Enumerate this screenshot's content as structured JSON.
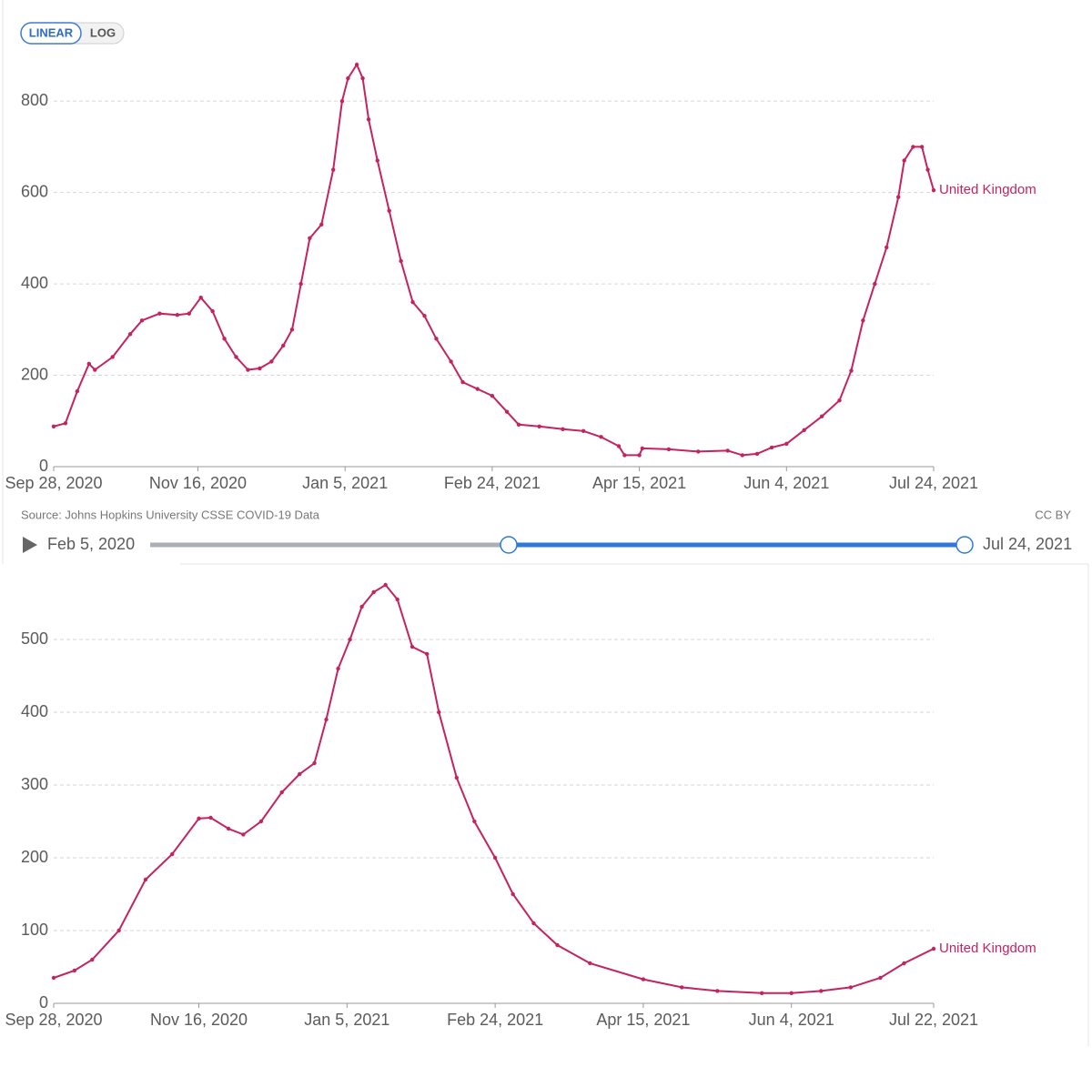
{
  "ui": {
    "scale_buttons": [
      "LINEAR",
      "LOG"
    ],
    "source": "Source: Johns Hopkins University CSSE COVID-19 Data",
    "license": "CC BY",
    "slider": {
      "start": "Feb 5, 2020",
      "end": "Jul 24, 2021"
    }
  },
  "chart_data": [
    {
      "type": "line",
      "x": [
        "2020-09-28",
        "2020-10-02",
        "2020-10-06",
        "2020-10-10",
        "2020-10-12",
        "2020-10-18",
        "2020-10-24",
        "2020-10-28",
        "2020-11-03",
        "2020-11-09",
        "2020-11-13",
        "2020-11-17",
        "2020-11-21",
        "2020-11-25",
        "2020-11-29",
        "2020-12-03",
        "2020-12-07",
        "2020-12-11",
        "2020-12-15",
        "2020-12-18",
        "2020-12-21",
        "2020-12-24",
        "2020-12-28",
        "2021-01-01",
        "2021-01-04",
        "2021-01-06",
        "2021-01-09",
        "2021-01-11",
        "2021-01-13",
        "2021-01-16",
        "2021-01-20",
        "2021-01-24",
        "2021-01-28",
        "2021-02-01",
        "2021-02-05",
        "2021-02-10",
        "2021-02-14",
        "2021-02-19",
        "2021-02-24",
        "2021-03-01",
        "2021-03-05",
        "2021-03-12",
        "2021-03-20",
        "2021-03-27",
        "2021-04-02",
        "2021-04-08",
        "2021-04-10",
        "2021-04-15",
        "2021-04-16",
        "2021-04-25",
        "2021-05-05",
        "2021-05-15",
        "2021-05-20",
        "2021-05-25",
        "2021-05-30",
        "2021-06-04",
        "2021-06-10",
        "2021-06-16",
        "2021-06-22",
        "2021-06-26",
        "2021-06-30",
        "2021-07-04",
        "2021-07-08",
        "2021-07-12",
        "2021-07-14",
        "2021-07-17",
        "2021-07-20",
        "2021-07-22",
        "2021-07-24"
      ],
      "series": [
        {
          "name": "United Kingdom",
          "color": "#c4235f",
          "values": [
            88,
            95,
            165,
            225,
            212,
            240,
            290,
            320,
            335,
            332,
            335,
            370,
            340,
            280,
            240,
            212,
            215,
            230,
            265,
            300,
            400,
            500,
            530,
            650,
            800,
            850,
            880,
            850,
            760,
            670,
            560,
            450,
            360,
            330,
            280,
            230,
            185,
            170,
            155,
            120,
            92,
            88,
            82,
            78,
            65,
            45,
            25,
            25,
            40,
            38,
            33,
            35,
            25,
            28,
            42,
            50,
            80,
            110,
            145,
            210,
            320,
            400,
            480,
            590,
            670,
            700,
            700,
            650,
            605
          ]
        }
      ],
      "xlim": [
        "2020-09-28",
        "2021-07-24"
      ],
      "xticks": [
        {
          "value": "2020-09-28",
          "label": "Sep 28, 2020"
        },
        {
          "value": "2020-11-16",
          "label": "Nov 16, 2020"
        },
        {
          "value": "2021-01-05",
          "label": "Jan 5, 2021"
        },
        {
          "value": "2021-02-24",
          "label": "Feb 24, 2021"
        },
        {
          "value": "2021-04-15",
          "label": "Apr 15, 2021"
        },
        {
          "value": "2021-06-04",
          "label": "Jun 4, 2021"
        },
        {
          "value": "2021-07-24",
          "label": "Jul 24, 2021"
        }
      ],
      "ylim": [
        0,
        880
      ],
      "yticks": [
        0,
        200,
        400,
        600,
        800
      ],
      "grid": true
    },
    {
      "type": "line",
      "x": [
        "2020-09-28",
        "2020-10-05",
        "2020-10-11",
        "2020-10-20",
        "2020-10-29",
        "2020-11-07",
        "2020-11-16",
        "2020-11-20",
        "2020-11-26",
        "2020-12-01",
        "2020-12-07",
        "2020-12-14",
        "2020-12-20",
        "2020-12-25",
        "2020-12-29",
        "2021-01-02",
        "2021-01-06",
        "2021-01-10",
        "2021-01-14",
        "2021-01-18",
        "2021-01-22",
        "2021-01-27",
        "2021-02-01",
        "2021-02-05",
        "2021-02-11",
        "2021-02-17",
        "2021-02-24",
        "2021-03-02",
        "2021-03-09",
        "2021-03-17",
        "2021-03-28",
        "2021-04-15",
        "2021-04-28",
        "2021-05-10",
        "2021-05-25",
        "2021-06-04",
        "2021-06-14",
        "2021-06-24",
        "2021-07-04",
        "2021-07-12",
        "2021-07-22"
      ],
      "series": [
        {
          "name": "United Kingdom",
          "color": "#c4235f",
          "values": [
            35,
            45,
            60,
            100,
            170,
            205,
            254,
            255,
            240,
            232,
            250,
            290,
            315,
            330,
            390,
            460,
            500,
            545,
            565,
            575,
            555,
            490,
            480,
            400,
            310,
            250,
            200,
            150,
            110,
            80,
            55,
            33,
            22,
            17,
            14,
            14,
            17,
            22,
            35,
            55,
            75
          ]
        }
      ],
      "xlim": [
        "2020-09-28",
        "2021-07-22"
      ],
      "xticks": [
        {
          "value": "2020-09-28",
          "label": "Sep 28, 2020"
        },
        {
          "value": "2020-11-16",
          "label": "Nov 16, 2020"
        },
        {
          "value": "2021-01-05",
          "label": "Jan 5, 2021"
        },
        {
          "value": "2021-02-24",
          "label": "Feb 24, 2021"
        },
        {
          "value": "2021-04-15",
          "label": "Apr 15, 2021"
        },
        {
          "value": "2021-06-04",
          "label": "Jun 4, 2021"
        },
        {
          "value": "2021-07-22",
          "label": "Jul 22, 2021"
        }
      ],
      "ylim": [
        0,
        580
      ],
      "yticks": [
        0,
        100,
        200,
        300,
        400,
        500
      ],
      "grid": true
    }
  ]
}
